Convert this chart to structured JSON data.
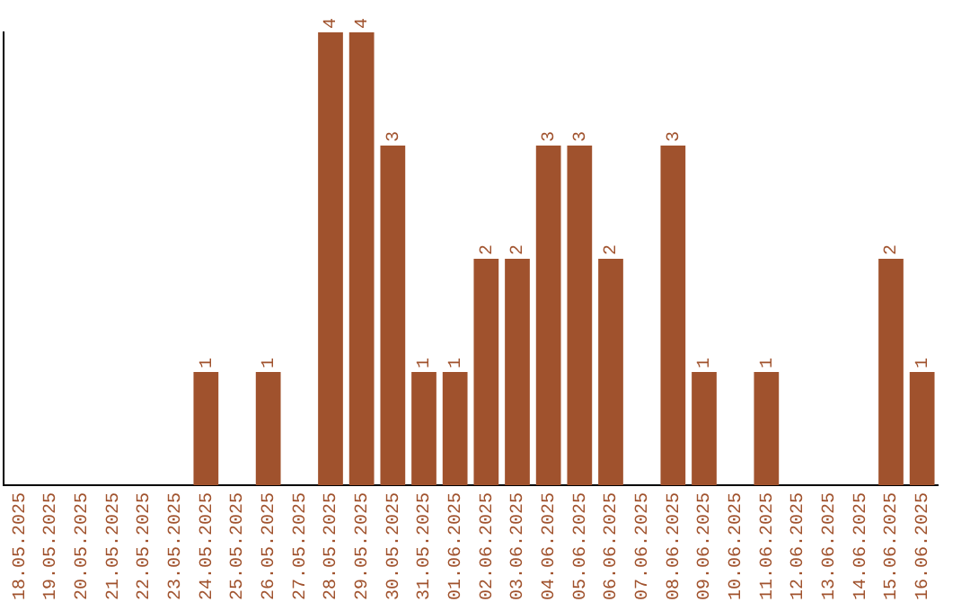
{
  "chart_data": {
    "type": "bar",
    "categories": [
      "18.05.2025",
      "19.05.2025",
      "20.05.2025",
      "21.05.2025",
      "22.05.2025",
      "23.05.2025",
      "24.05.2025",
      "25.05.2025",
      "26.05.2025",
      "27.05.2025",
      "28.05.2025",
      "29.05.2025",
      "30.05.2025",
      "31.05.2025",
      "01.06.2025",
      "02.06.2025",
      "03.06.2025",
      "04.06.2025",
      "05.06.2025",
      "06.06.2025",
      "07.06.2025",
      "08.06.2025",
      "09.06.2025",
      "10.06.2025",
      "11.06.2025",
      "12.06.2025",
      "13.06.2025",
      "14.06.2025",
      "15.06.2025",
      "16.06.2025"
    ],
    "values": [
      0,
      0,
      0,
      0,
      0,
      0,
      1,
      0,
      1,
      0,
      4,
      4,
      3,
      1,
      1,
      2,
      2,
      3,
      3,
      2,
      0,
      3,
      1,
      0,
      1,
      0,
      0,
      0,
      2,
      1
    ],
    "value_labels": [
      null,
      null,
      null,
      null,
      null,
      null,
      "1",
      null,
      "1",
      null,
      "4",
      "4",
      "3",
      "1",
      "1",
      "2",
      "2",
      "3",
      "3",
      "2",
      null,
      "3",
      "1",
      null,
      "1",
      null,
      null,
      null,
      "2",
      "1"
    ],
    "color": "#a0522d",
    "grid": false,
    "legend": false,
    "tick_labels": "x"
  }
}
